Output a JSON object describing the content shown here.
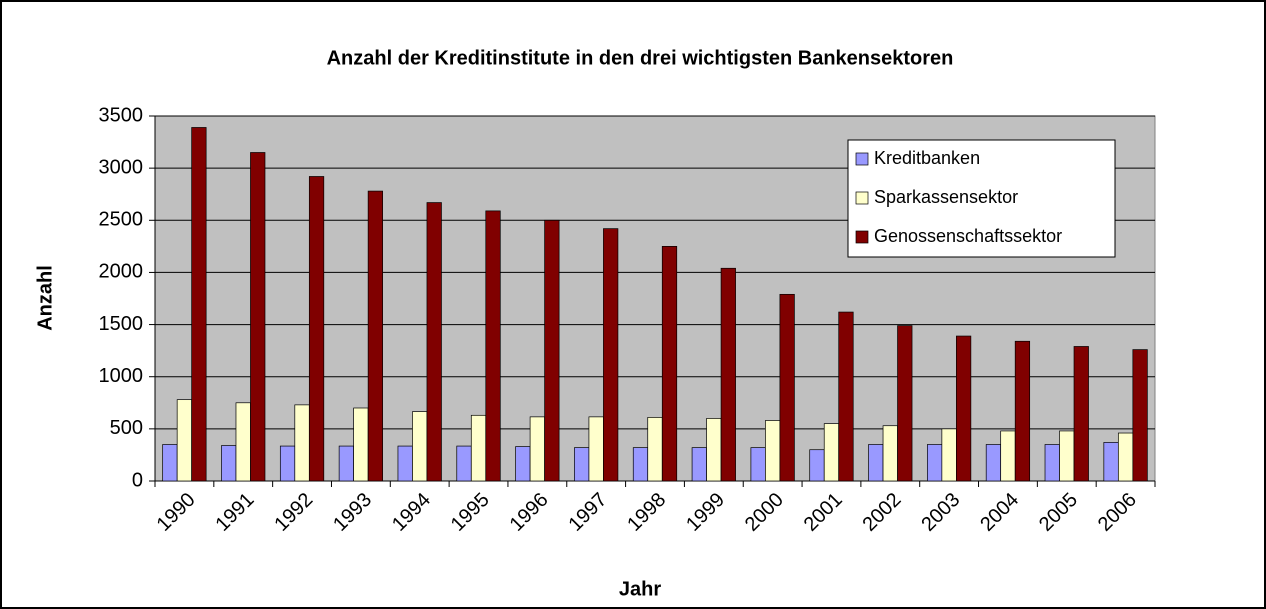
{
  "chart_data": {
    "type": "bar",
    "title": "Anzahl der Kreditinstitute in den drei wichtigsten Bankensektoren",
    "x_label": "Jahr",
    "y_label": "Anzahl",
    "categories": [
      "1990",
      "1991",
      "1992",
      "1993",
      "1994",
      "1995",
      "1996",
      "1997",
      "1998",
      "1999",
      "2000",
      "2001",
      "2002",
      "2003",
      "2004",
      "2005",
      "2006"
    ],
    "series": [
      {
        "name": "Kreditbanken",
        "color": "#9999ff",
        "values": [
          350,
          340,
          335,
          335,
          335,
          335,
          330,
          320,
          320,
          320,
          320,
          300,
          350,
          350,
          350,
          350,
          370
        ]
      },
      {
        "name": "Sparkassensektor",
        "color": "#ffffcc",
        "values": [
          780,
          750,
          730,
          700,
          665,
          630,
          615,
          615,
          610,
          600,
          580,
          550,
          530,
          500,
          480,
          480,
          460
        ]
      },
      {
        "name": "Genossenschaftssektor",
        "color": "#800000",
        "values": [
          3390,
          3150,
          2920,
          2780,
          2670,
          2590,
          2500,
          2420,
          2250,
          2040,
          1790,
          1620,
          1490,
          1390,
          1340,
          1290,
          1260
        ]
      }
    ],
    "ylim": [
      0,
      3500
    ],
    "yticks": [
      0,
      500,
      1000,
      1500,
      2000,
      2500,
      3000,
      3500
    ],
    "grid": true,
    "legend": "upper right",
    "plot_background": "#c0c0c0"
  }
}
